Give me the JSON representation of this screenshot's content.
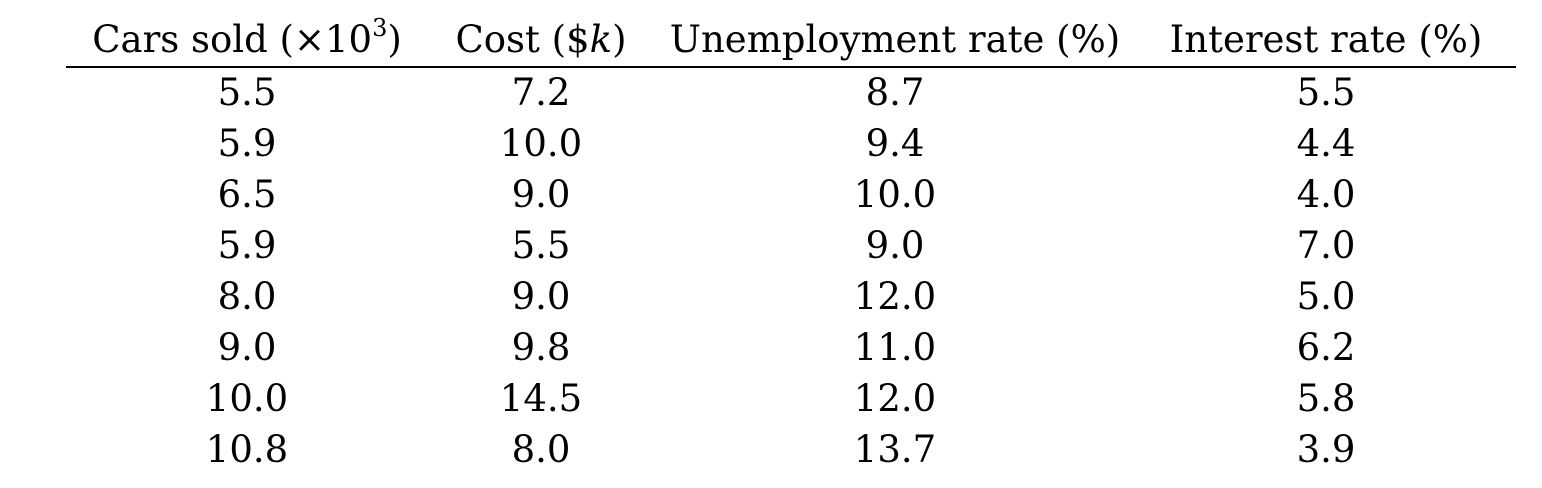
{
  "table": {
    "headers": [
      {
        "text": "Cars sold (×10",
        "sup": "3",
        "tail": ")"
      },
      {
        "text": "Cost ($",
        "italic": "k",
        "tail": ")"
      },
      {
        "text": "Unemployment rate (%)"
      },
      {
        "text": "Interest rate (%)"
      }
    ],
    "rows": [
      [
        "5.5",
        "7.2",
        "8.7",
        "5.5"
      ],
      [
        "5.9",
        "10.0",
        "9.4",
        "4.4"
      ],
      [
        "6.5",
        "9.0",
        "10.0",
        "4.0"
      ],
      [
        "5.9",
        "5.5",
        "9.0",
        "7.0"
      ],
      [
        "8.0",
        "9.0",
        "12.0",
        "5.0"
      ],
      [
        "9.0",
        "9.8",
        "11.0",
        "6.2"
      ],
      [
        "10.0",
        "14.5",
        "12.0",
        "5.8"
      ],
      [
        "10.8",
        "8.0",
        "13.7",
        "3.9"
      ]
    ]
  }
}
